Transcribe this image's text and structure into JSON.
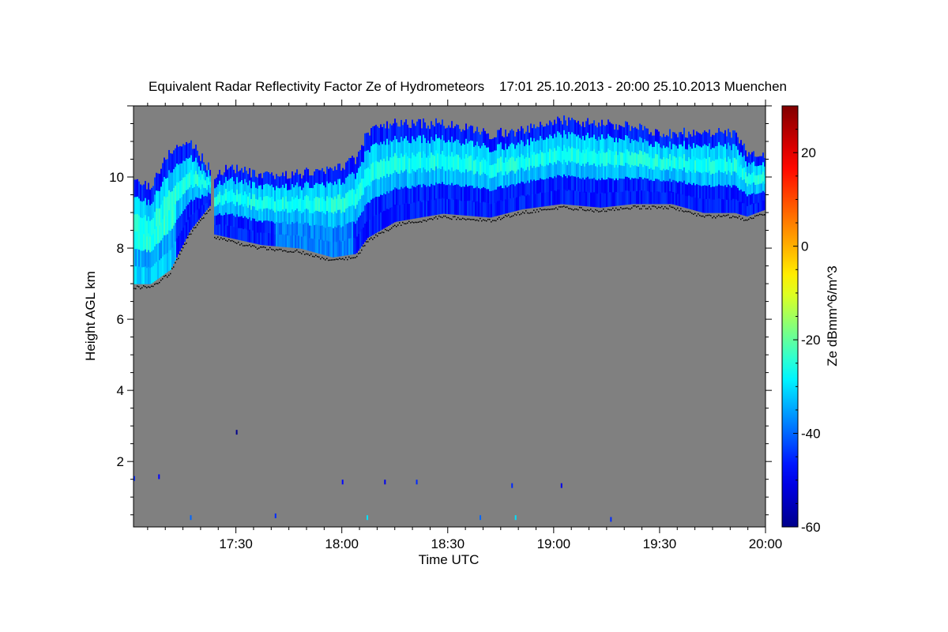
{
  "chart_data": {
    "type": "heatmap",
    "title": "Equivalent Radar Reflectivity Factor Ze of Hydrometeors    17:01 25.10.2013 - 20:00 25.10.2013 Muenchen",
    "xlabel": "Time UTC",
    "ylabel": "Height AGL km",
    "colorbar_label": "Ze dBmm^6/m^3",
    "x_start": "17:01",
    "x_range_minutes": [
      0,
      179
    ],
    "x_ticks": [
      {
        "min": 29,
        "label": "17:30"
      },
      {
        "min": 59,
        "label": "18:00"
      },
      {
        "min": 89,
        "label": "18:30"
      },
      {
        "min": 119,
        "label": "19:00"
      },
      {
        "min": 149,
        "label": "19:30"
      },
      {
        "min": 179,
        "label": "20:00"
      }
    ],
    "ylim": [
      0.16,
      12.0
    ],
    "y_ticks": [
      {
        "v": 2,
        "label": "2"
      },
      {
        "v": 4,
        "label": "4"
      },
      {
        "v": 6,
        "label": "6"
      },
      {
        "v": 8,
        "label": "8"
      },
      {
        "v": 10,
        "label": "10"
      }
    ],
    "clim": [
      -60,
      30
    ],
    "c_ticks": [
      {
        "v": 20,
        "label": "20"
      },
      {
        "v": 0,
        "label": "0"
      },
      {
        "v": -20,
        "label": "-20"
      },
      {
        "v": -40,
        "label": "-40"
      },
      {
        "v": -60,
        "label": "-60"
      }
    ],
    "background_color": "#808080",
    "cloud_segments": [
      {
        "minutes": [
          0,
          4.7,
          10.3,
          15.9,
          21.5
        ],
        "top_km": [
          9.87,
          9.75,
          10.75,
          11.0,
          10.2
        ],
        "base_km": [
          7.0,
          7.0,
          7.4,
          8.5,
          9.2
        ]
      },
      {
        "minutes": [
          22.6,
          27,
          36,
          47.2,
          56.2,
          62.9,
          66.2,
          74,
          87.5,
          100.9,
          109.8,
          121,
          132.2,
          141.2,
          152.3,
          161.3,
          170.2,
          173.6,
          179
        ],
        "top_km": [
          10.0,
          10.3,
          10.0,
          10.1,
          10.2,
          10.5,
          11.3,
          11.5,
          11.5,
          11.2,
          11.3,
          11.6,
          11.5,
          11.4,
          11.2,
          11.3,
          11.2,
          10.65,
          10.65
        ],
        "base_km": [
          8.4,
          8.3,
          8.1,
          8.0,
          7.75,
          7.85,
          8.3,
          8.75,
          8.98,
          8.87,
          9.1,
          9.25,
          9.15,
          9.25,
          9.25,
          9.0,
          9.0,
          8.9,
          9.1
        ]
      }
    ],
    "speckles": [
      {
        "min": 0,
        "km": 1.5,
        "ze": -45
      },
      {
        "min": 7,
        "km": 1.55,
        "ze": -48
      },
      {
        "min": 29,
        "km": 2.8,
        "ze": -60
      },
      {
        "min": 59,
        "km": 1.4,
        "ze": -48
      },
      {
        "min": 71,
        "km": 1.4,
        "ze": -50
      },
      {
        "min": 80,
        "km": 1.4,
        "ze": -45
      },
      {
        "min": 107,
        "km": 1.3,
        "ze": -45
      },
      {
        "min": 121,
        "km": 1.3,
        "ze": -50
      },
      {
        "min": 16,
        "km": 0.4,
        "ze": -40
      },
      {
        "min": 40,
        "km": 0.45,
        "ze": -45
      },
      {
        "min": 66,
        "km": 0.4,
        "ze": -30
      },
      {
        "min": 98,
        "km": 0.4,
        "ze": -40
      },
      {
        "min": 135,
        "km": 0.35,
        "ze": -45
      },
      {
        "min": 108,
        "km": 0.4,
        "ze": -30
      }
    ]
  }
}
